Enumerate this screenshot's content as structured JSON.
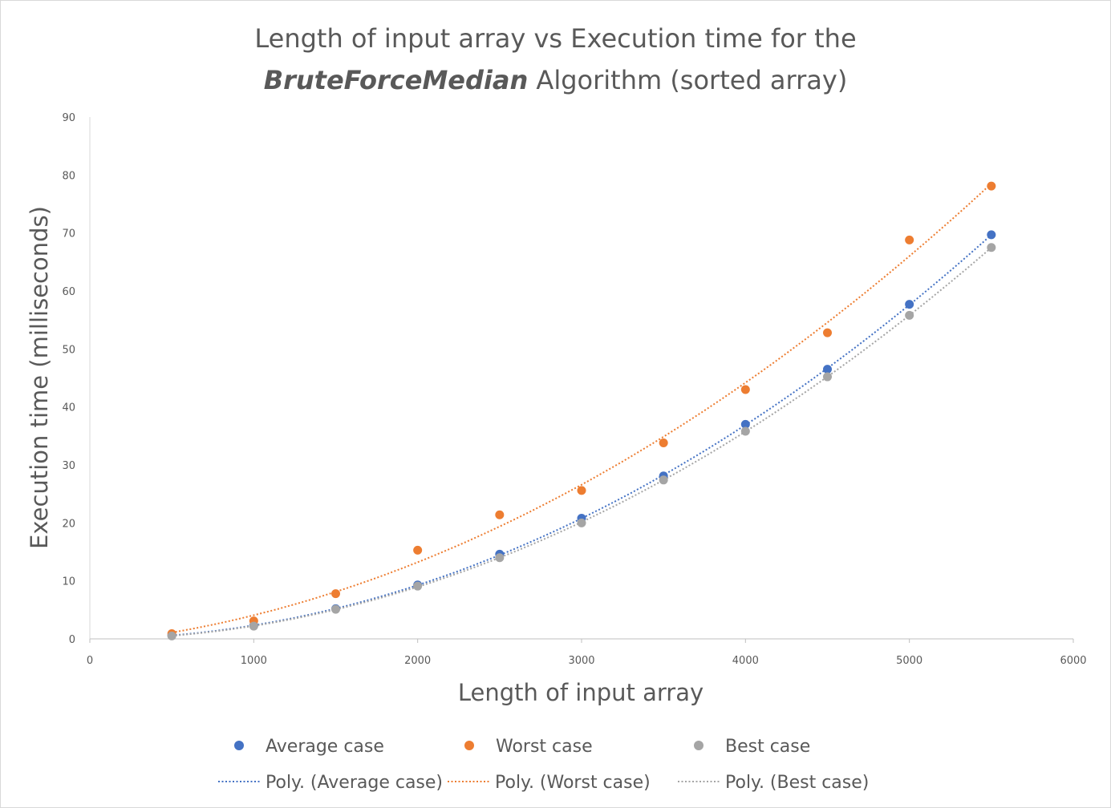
{
  "chart_data": {
    "type": "scatter",
    "title_line1": "Length of input array vs Execution time for the",
    "title_emphasis": "BruteForceMedian",
    "title_rest": " Algorithm (sorted array)",
    "xlabel": "Length of input array",
    "ylabel": "Execution time (milliseconds)",
    "xlim": [
      0,
      6000
    ],
    "ylim": [
      0,
      90
    ],
    "x_ticks": [
      "0",
      "1000",
      "2000",
      "3000",
      "4000",
      "5000",
      "6000"
    ],
    "y_ticks": [
      "0",
      "10",
      "20",
      "30",
      "40",
      "50",
      "60",
      "70",
      "80",
      "90"
    ],
    "grid": false,
    "legend_position": "bottom",
    "series": [
      {
        "name": "Average case",
        "trendline": "Poly. (Average case)",
        "color": "#4472C4",
        "x": [
          500,
          1000,
          1500,
          2000,
          2500,
          3000,
          3500,
          4000,
          4500,
          5000,
          5500
        ],
        "y": [
          0.6,
          2.3,
          5.2,
          9.3,
          14.6,
          20.8,
          28.1,
          37.0,
          46.5,
          57.7,
          69.7
        ]
      },
      {
        "name": "Worst case",
        "trendline": "Poly. (Worst case)",
        "color": "#ED7D31",
        "x": [
          500,
          1000,
          1500,
          2000,
          2500,
          3000,
          3500,
          4000,
          4500,
          5000,
          5500
        ],
        "y": [
          0.9,
          3.1,
          7.8,
          15.3,
          21.4,
          25.6,
          33.8,
          43.0,
          52.8,
          68.8,
          78.1
        ]
      },
      {
        "name": "Best case",
        "trendline": "Poly. (Best case)",
        "color": "#A5A5A5",
        "x": [
          500,
          1000,
          1500,
          2000,
          2500,
          3000,
          3500,
          4000,
          4500,
          5000,
          5500
        ],
        "y": [
          0.5,
          2.2,
          5.1,
          9.1,
          14.0,
          20.0,
          27.4,
          35.8,
          45.2,
          55.8,
          67.5
        ]
      }
    ]
  }
}
